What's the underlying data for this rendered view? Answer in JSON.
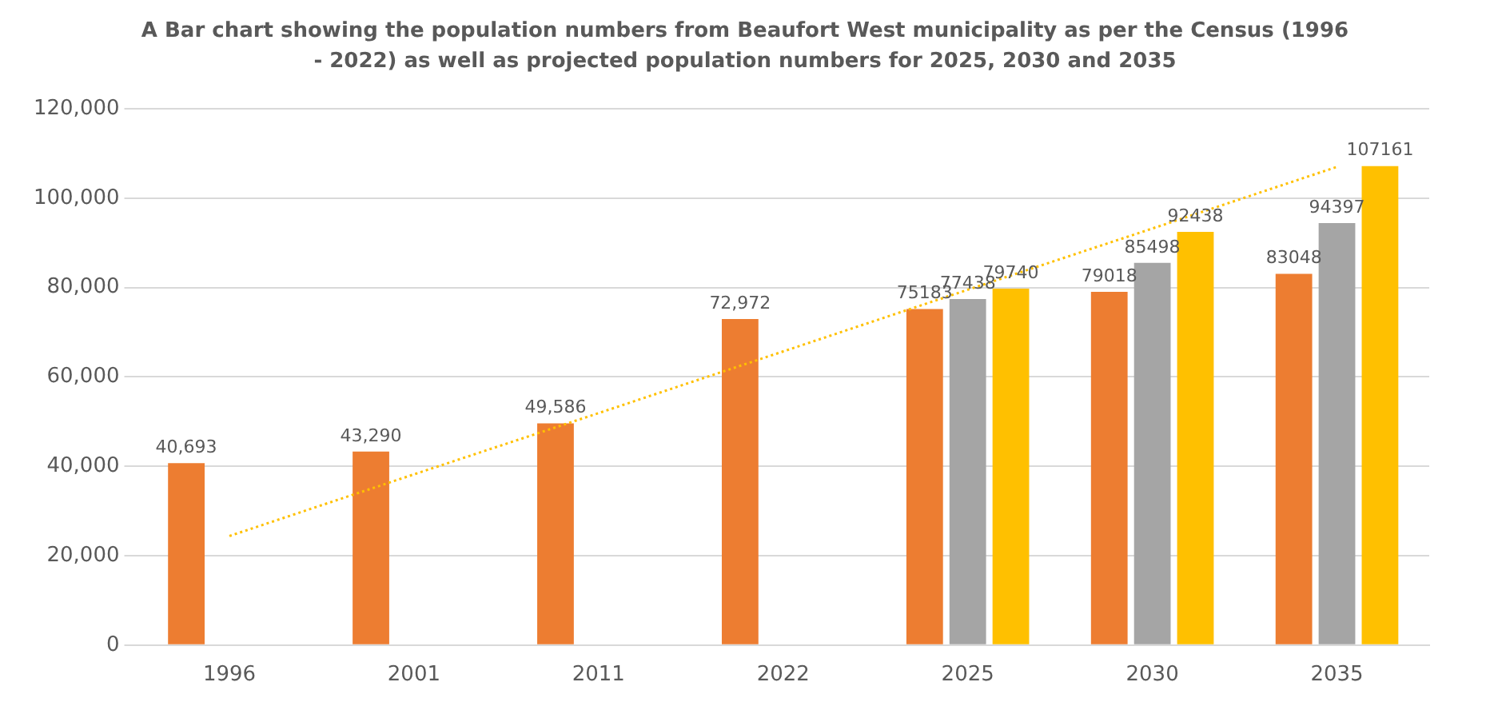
{
  "chart_data": {
    "type": "bar",
    "title": "A Bar chart showing the population numbers from Beaufort West municipality as per the Census (1996 - 2022) as well as projected population numbers for 2025, 2030 and 2035",
    "categories": [
      "1996",
      "2001",
      "2011",
      "2022",
      "2025",
      "2030",
      "2035"
    ],
    "series": [
      {
        "color": "#ed7d31",
        "values": [
          40693,
          43290,
          49586,
          72972,
          75183,
          79018,
          83048
        ],
        "value_labels": [
          "40,693",
          "43,290",
          "49,586",
          "72,972",
          "75183",
          "79018",
          "83048"
        ]
      },
      {
        "color": "#a5a5a5",
        "values": [
          null,
          null,
          null,
          null,
          77438,
          85498,
          94397
        ],
        "value_labels": [
          null,
          null,
          null,
          null,
          "77438",
          "85498",
          "94397"
        ]
      },
      {
        "color": "#ffc000",
        "values": [
          null,
          null,
          null,
          null,
          79740,
          92438,
          107161
        ],
        "value_labels": [
          null,
          null,
          null,
          null,
          "79740",
          "92438",
          "107161"
        ]
      },
      {
        "type": "line",
        "color": "#ffc000",
        "line_style": "dotted",
        "marker": "none",
        "values": [
          24400,
          38200,
          51900,
          65700,
          79500,
          93200,
          107000
        ]
      }
    ],
    "ylim": [
      0,
      120000
    ],
    "yticks": [
      0,
      {
        "value": 20000,
        "label": "20,000"
      },
      {
        "value": 40000,
        "label": "40,000"
      },
      {
        "value": 60000,
        "label": "60,000"
      },
      {
        "value": 80000,
        "label": "80,000"
      },
      {
        "value": 100000,
        "label": "100,000"
      },
      {
        "value": 120000,
        "label": "120,000"
      }
    ],
    "grid": "y",
    "legend": false
  }
}
